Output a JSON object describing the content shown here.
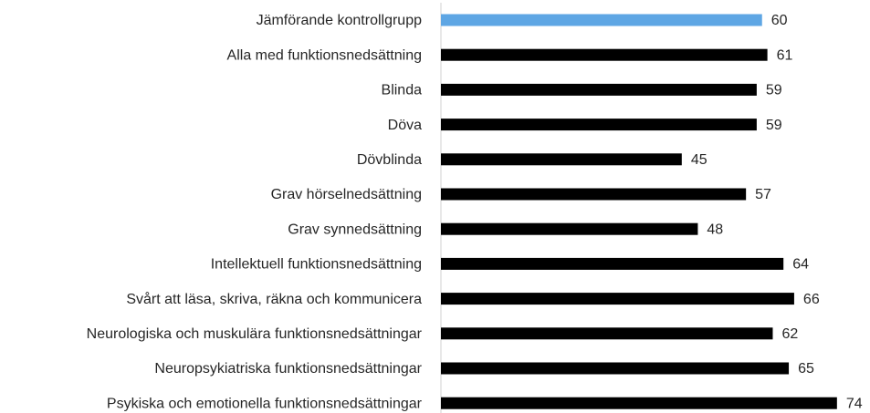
{
  "chart_data": {
    "type": "barh",
    "categories": [
      "Jämförande kontrollgrupp",
      "Alla med funktionsnedsättning",
      "Blinda",
      "Döva",
      "Dövblinda",
      "Grav hörselnedsättning",
      "Grav synnedsättning",
      "Intellektuell funktionsnedsättning",
      "Svårt att läsa, skriva, räkna och kommunicera",
      "Neurologiska och muskulära funktionsnedsättningar",
      "Neuropsykiatriska funktionsnedsättningar",
      "Psykiska och emotionella funktionsnedsättningar"
    ],
    "values": [
      60,
      61,
      59,
      59,
      45,
      57,
      48,
      64,
      66,
      62,
      65,
      74
    ],
    "colors": [
      "#5ea6e4",
      "#000000",
      "#000000",
      "#000000",
      "#000000",
      "#000000",
      "#000000",
      "#000000",
      "#000000",
      "#000000",
      "#000000",
      "#000000"
    ],
    "xlim": [
      0,
      80
    ]
  }
}
